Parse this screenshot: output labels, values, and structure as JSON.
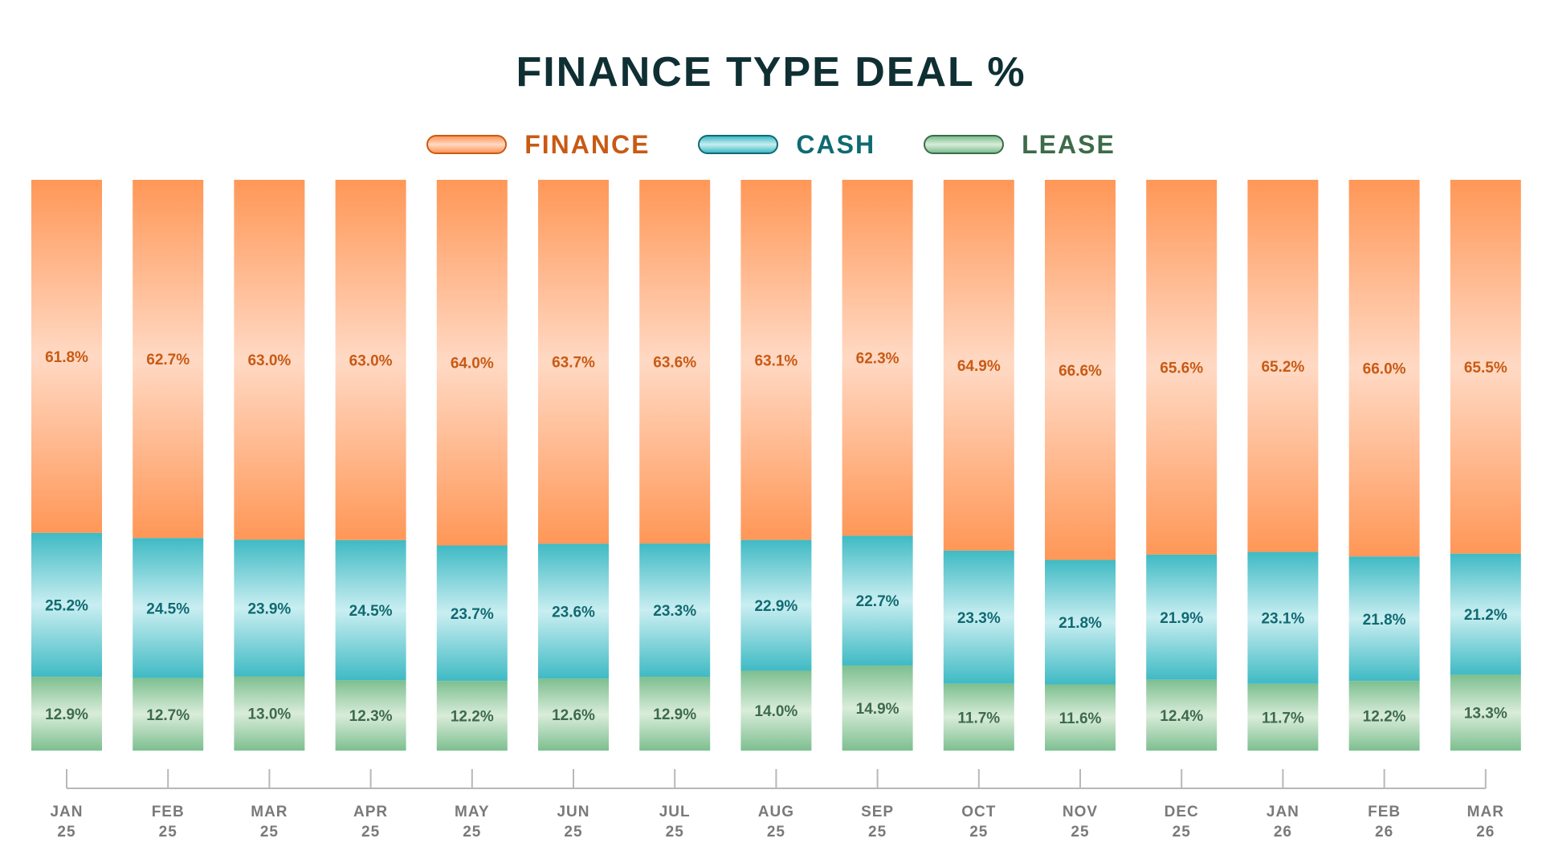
{
  "colors": {
    "finance_dark": "#ff9757",
    "finance_light": "#ffd9c4",
    "cash_dark": "#3fbac4",
    "cash_light": "#c9eef1",
    "lease_dark": "#7dbf90",
    "lease_light": "#d9ecd9",
    "finance_text": "#c85a14",
    "cash_text": "#0f6a72",
    "lease_text": "#3d6b4a",
    "title_text": "#0f2f33",
    "axis": "#b8b8b8"
  },
  "chart_data": {
    "type": "bar",
    "stacked": true,
    "title": "FINANCE TYPE DEAL %",
    "categories": [
      [
        "JAN",
        "25"
      ],
      [
        "FEB",
        "25"
      ],
      [
        "MAR",
        "25"
      ],
      [
        "APR",
        "25"
      ],
      [
        "MAY",
        "25"
      ],
      [
        "JUN",
        "25"
      ],
      [
        "JUL",
        "25"
      ],
      [
        "AUG",
        "25"
      ],
      [
        "SEP",
        "25"
      ],
      [
        "OCT",
        "25"
      ],
      [
        "NOV",
        "25"
      ],
      [
        "DEC",
        "25"
      ],
      [
        "JAN",
        "26"
      ],
      [
        "FEB",
        "26"
      ],
      [
        "MAR",
        "26"
      ]
    ],
    "legend_position": "top-center",
    "series": [
      {
        "name": "FINANCE",
        "values": [
          61.8,
          62.7,
          63.0,
          63.0,
          64.0,
          63.7,
          63.6,
          63.1,
          62.3,
          64.9,
          66.6,
          65.6,
          65.2,
          66.0,
          65.5
        ],
        "labels": [
          "61.8%",
          "62.7%",
          "63.0%",
          "63.0%",
          "64.0%",
          "63.7%",
          "63.6%",
          "63.1%",
          "62.3%",
          "64.9%",
          "66.6%",
          "65.6%",
          "65.2%",
          "66.0%",
          "65.5%"
        ]
      },
      {
        "name": "CASH",
        "values": [
          25.2,
          24.5,
          23.9,
          24.5,
          23.7,
          23.6,
          23.3,
          22.9,
          22.7,
          23.3,
          21.8,
          21.9,
          23.1,
          21.8,
          21.2
        ],
        "labels": [
          "25.2%",
          "24.5%",
          "23.9%",
          "24.5%",
          "23.7%",
          "23.6%",
          "23.3%",
          "22.9%",
          "22.7%",
          "23.3%",
          "21.8%",
          "21.9%",
          "23.1%",
          "21.8%",
          "21.2%"
        ]
      },
      {
        "name": "LEASE",
        "values": [
          12.9,
          12.7,
          13.0,
          12.3,
          12.2,
          12.6,
          12.9,
          14.0,
          14.9,
          11.7,
          11.6,
          12.4,
          11.7,
          12.2,
          13.3
        ],
        "labels": [
          "12.9%",
          "12.7%",
          "13.0%",
          "12.3%",
          "12.2%",
          "12.6%",
          "12.9%",
          "14.0%",
          "14.9%",
          "11.7%",
          "11.6%",
          "12.4%",
          "11.7%",
          "12.2%",
          "13.3%"
        ]
      }
    ],
    "ylim": [
      0,
      100
    ],
    "grid": false
  }
}
